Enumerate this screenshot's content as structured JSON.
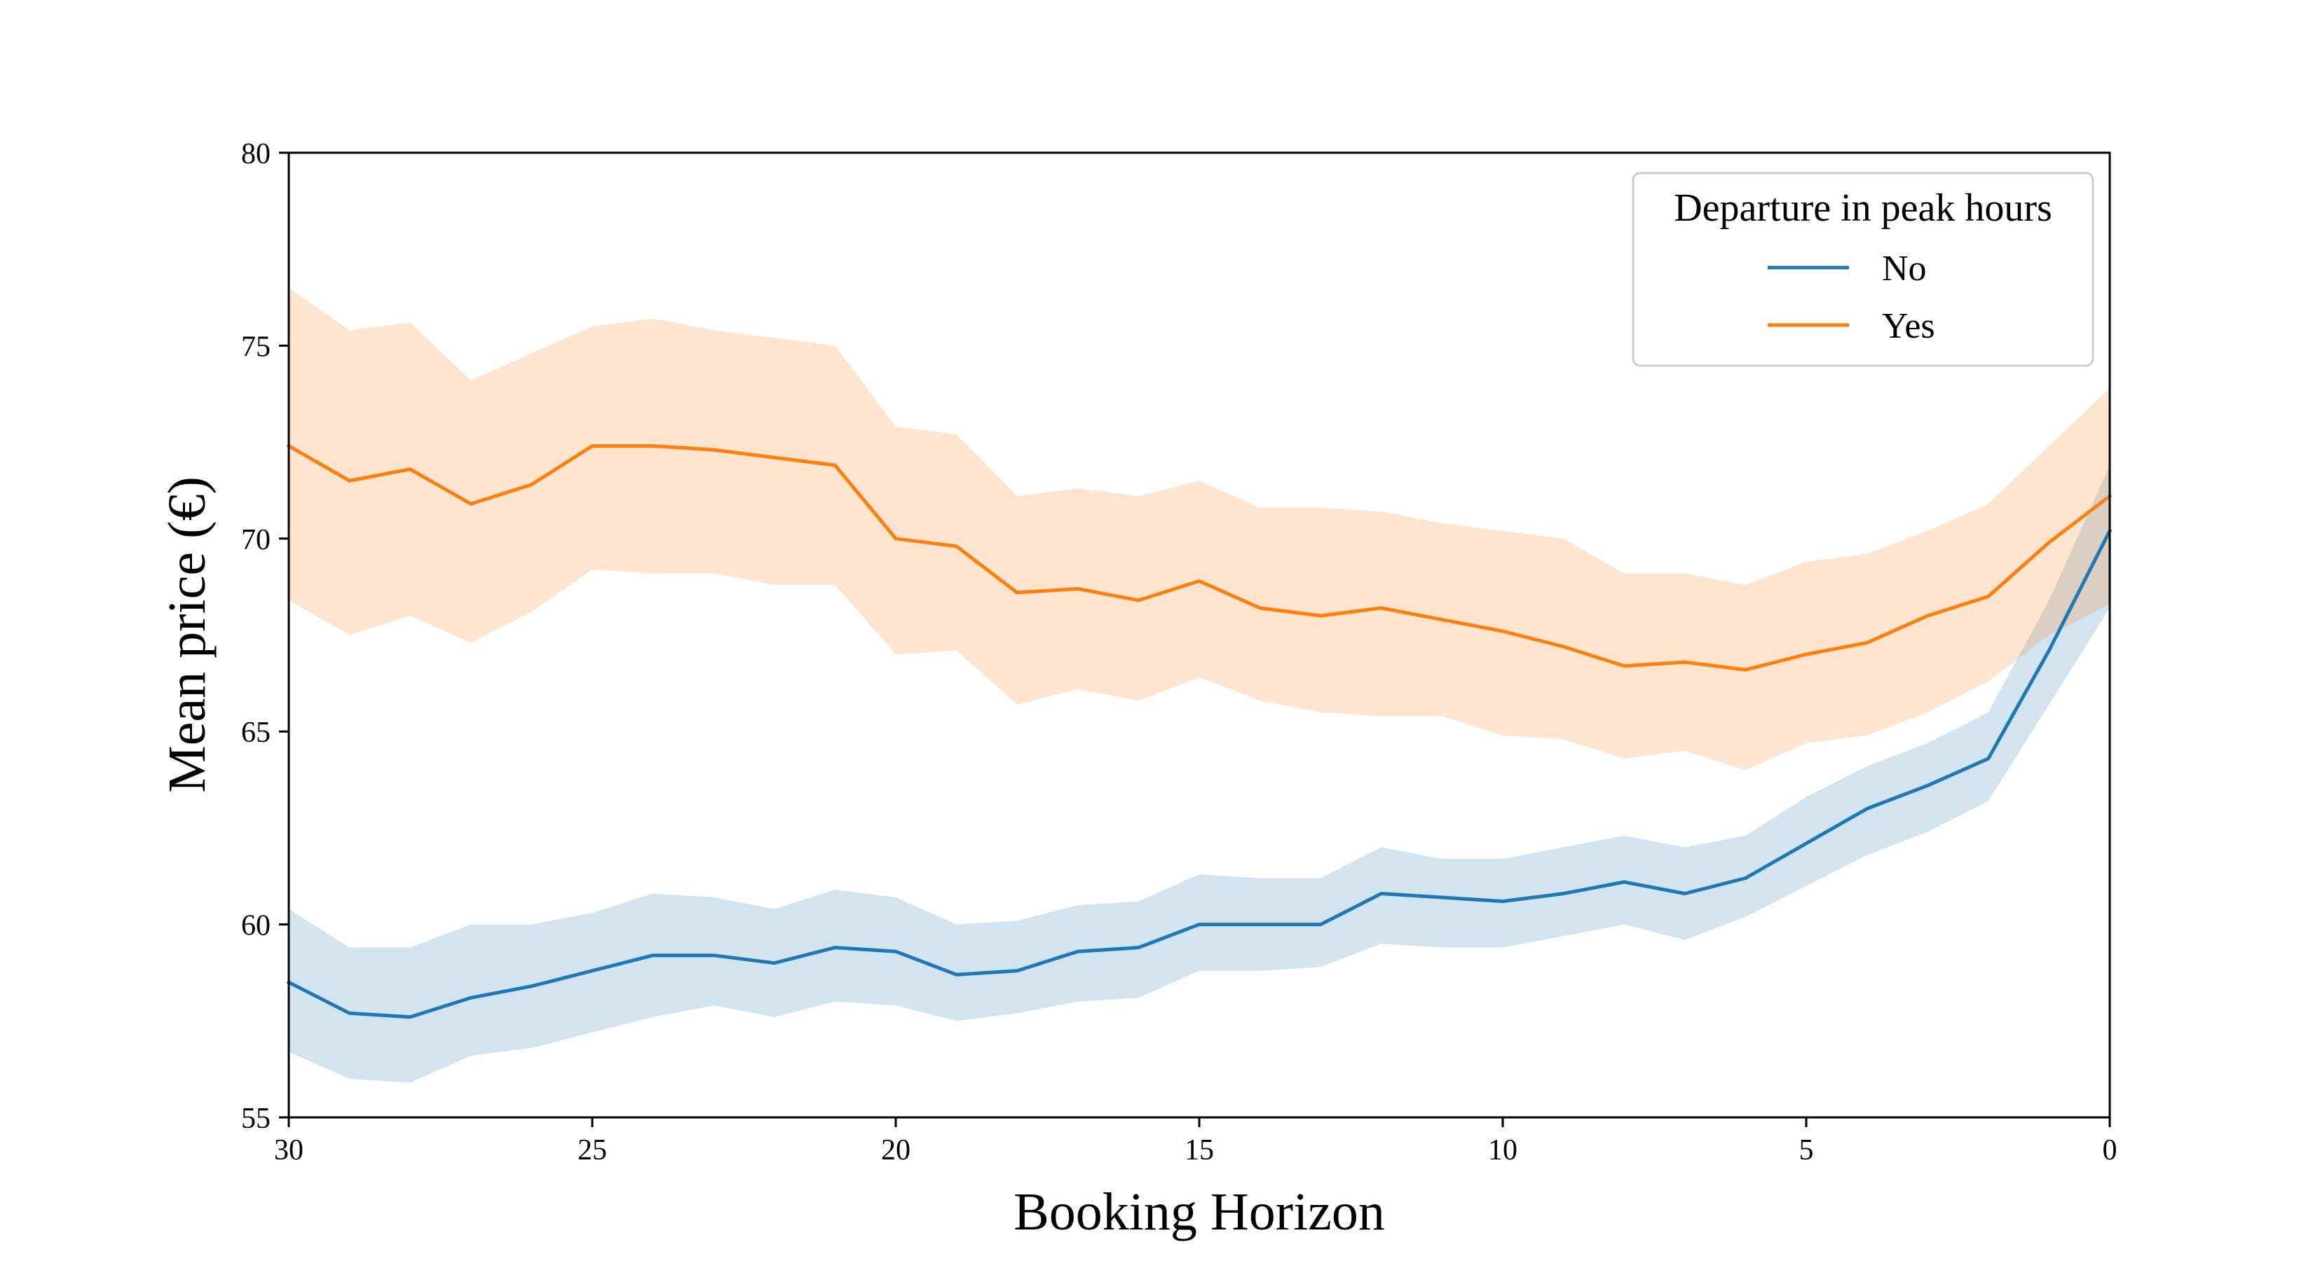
{
  "chart_data": {
    "type": "line",
    "xlabel": "Booking Horizon",
    "ylabel": "Mean price (€)",
    "xlim": [
      30,
      0
    ],
    "ylim": [
      55,
      80
    ],
    "x_reversed": true,
    "x_ticks": [
      30,
      25,
      20,
      15,
      10,
      5,
      0
    ],
    "y_ticks": [
      55,
      60,
      65,
      70,
      75,
      80
    ],
    "grid": false,
    "legend": {
      "title": "Departure in peak hours",
      "placement": "top-right"
    },
    "x": [
      30,
      29,
      28,
      27,
      26,
      25,
      24,
      23,
      22,
      21,
      20,
      19,
      18,
      17,
      16,
      15,
      14,
      13,
      12,
      11,
      10,
      9,
      8,
      7,
      6,
      5,
      4,
      3,
      2,
      1,
      0
    ],
    "series": [
      {
        "name": "No",
        "color": "#1f77b4",
        "band_color": "#1f77b4",
        "band_opacity": 0.2,
        "values": [
          58.5,
          57.7,
          57.6,
          58.1,
          58.4,
          58.8,
          59.2,
          59.2,
          59.0,
          59.4,
          59.3,
          58.7,
          58.8,
          59.3,
          59.4,
          60.0,
          60.0,
          60.0,
          60.8,
          60.7,
          60.6,
          60.8,
          61.1,
          60.8,
          61.2,
          62.1,
          63.0,
          63.6,
          64.3,
          67.1,
          70.2
        ],
        "lower": [
          56.7,
          56.0,
          55.9,
          56.6,
          56.8,
          57.2,
          57.6,
          57.9,
          57.6,
          58.0,
          57.9,
          57.5,
          57.7,
          58.0,
          58.1,
          58.8,
          58.8,
          58.9,
          59.5,
          59.4,
          59.4,
          59.7,
          60.0,
          59.6,
          60.2,
          61.0,
          61.8,
          62.4,
          63.2,
          65.7,
          68.2
        ],
        "upper": [
          60.4,
          59.4,
          59.4,
          60.0,
          60.0,
          60.3,
          60.8,
          60.7,
          60.4,
          60.9,
          60.7,
          60.0,
          60.1,
          60.5,
          60.6,
          61.3,
          61.2,
          61.2,
          62.0,
          61.7,
          61.7,
          62.0,
          62.3,
          62.0,
          62.3,
          63.3,
          64.1,
          64.7,
          65.5,
          68.4,
          71.9
        ]
      },
      {
        "name": "Yes",
        "color": "#ff7f0e",
        "band_color": "#ff7f0e",
        "band_opacity": 0.2,
        "values": [
          72.4,
          71.5,
          71.8,
          70.9,
          71.4,
          72.4,
          72.4,
          72.3,
          72.1,
          71.9,
          70.0,
          69.8,
          68.6,
          68.7,
          68.4,
          68.9,
          68.2,
          68.0,
          68.2,
          67.9,
          67.6,
          67.2,
          66.7,
          66.8,
          66.6,
          67.0,
          67.3,
          68.0,
          68.5,
          69.9,
          71.1
        ],
        "lower": [
          68.4,
          67.5,
          68.0,
          67.3,
          68.1,
          69.2,
          69.1,
          69.1,
          68.8,
          68.8,
          67.0,
          67.1,
          65.7,
          66.1,
          65.8,
          66.4,
          65.8,
          65.5,
          65.4,
          65.4,
          64.9,
          64.8,
          64.3,
          64.5,
          64.0,
          64.7,
          64.9,
          65.5,
          66.3,
          67.5,
          68.3
        ],
        "upper": [
          76.5,
          75.4,
          75.6,
          74.1,
          74.8,
          75.5,
          75.7,
          75.4,
          75.2,
          75.0,
          72.9,
          72.7,
          71.1,
          71.3,
          71.1,
          71.5,
          70.8,
          70.8,
          70.7,
          70.4,
          70.2,
          70.0,
          69.1,
          69.1,
          68.8,
          69.4,
          69.6,
          70.2,
          70.9,
          72.4,
          73.9
        ]
      }
    ]
  }
}
